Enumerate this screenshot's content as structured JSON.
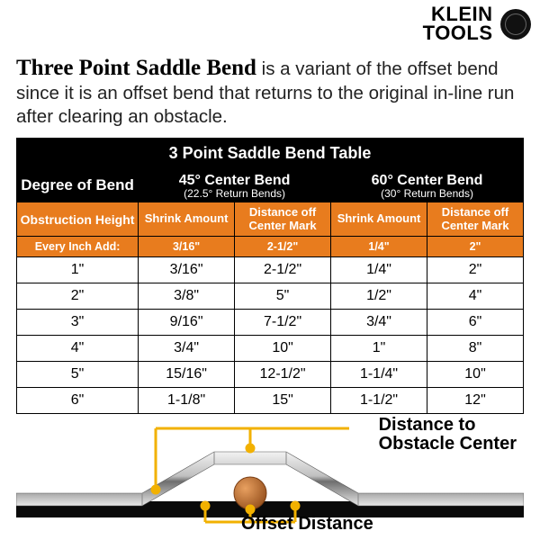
{
  "brand": {
    "line1": "KLEIN",
    "line2": "TOOLS"
  },
  "heading": {
    "bold": "Three Point Saddle Bend",
    "rest": " is a variant of the offset bend since it is an offset bend that returns to the original in-line run after clearing an obstacle."
  },
  "table": {
    "title": "3 Point Saddle Bend Table",
    "degree_label": "Degree of Bend",
    "col45": {
      "title": "45° Center Bend",
      "sub": "(22.5° Return Bends)"
    },
    "col60": {
      "title": "60° Center Bend",
      "sub": "(30° Return Bends)"
    },
    "obstruction": "Obstruction Height",
    "shrink": "Shrink Amount",
    "distoff": "Distance off Center Mark",
    "every_label": "Every Inch Add:",
    "every": {
      "s45": "3/16\"",
      "d45": "2-1/2\"",
      "s60": "1/4\"",
      "d60": "2\""
    },
    "rows": [
      {
        "h": "1\"",
        "s45": "3/16\"",
        "d45": "2-1/2\"",
        "s60": "1/4\"",
        "d60": "2\""
      },
      {
        "h": "2\"",
        "s45": "3/8\"",
        "d45": "5\"",
        "s60": "1/2\"",
        "d60": "4\""
      },
      {
        "h": "3\"",
        "s45": "9/16\"",
        "d45": "7-1/2\"",
        "s60": "3/4\"",
        "d60": "6\""
      },
      {
        "h": "4\"",
        "s45": "3/4\"",
        "d45": "10\"",
        "s60": "1\"",
        "d60": "8\""
      },
      {
        "h": "5\"",
        "s45": "15/16\"",
        "d45": "12-1/2\"",
        "s60": "1-1/4\"",
        "d60": "10\""
      },
      {
        "h": "6\"",
        "s45": "1-1/8\"",
        "d45": "15\"",
        "s60": "1-1/2\"",
        "d60": "12\""
      }
    ]
  },
  "diagram": {
    "label_distance": "Distance to Obstacle Center",
    "label_offset": "Offset Distance",
    "colors": {
      "pipe_light": "#d9d9d9",
      "pipe_dark": "#6e6e6e",
      "callout": "#f2b100",
      "obstacle_fill": "#c97a3a",
      "obstacle_stroke": "#8a4a1d",
      "ground": "#0a0a0a"
    }
  }
}
